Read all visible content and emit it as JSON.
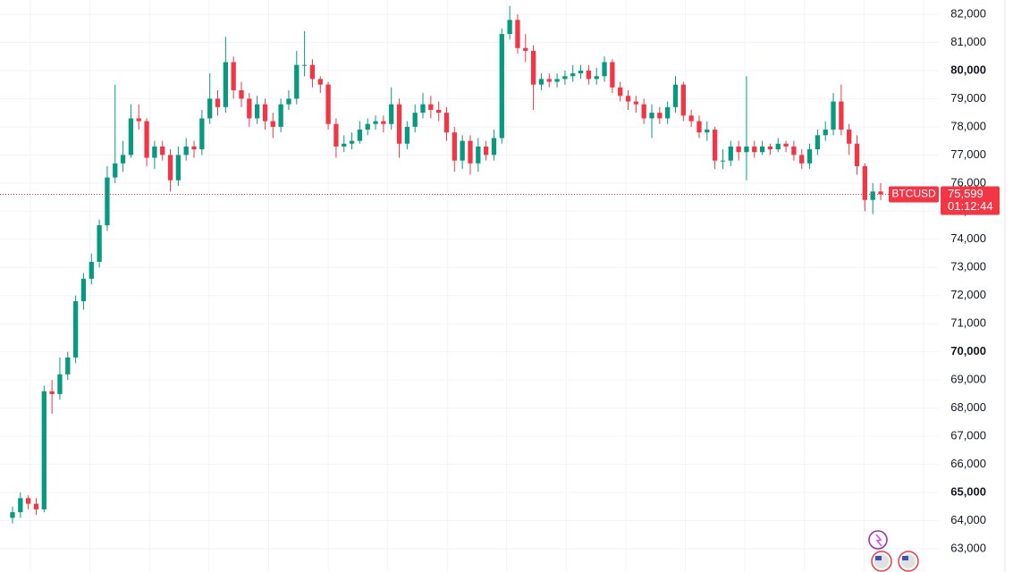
{
  "chart_data": {
    "type": "candlestick",
    "symbol": "BTCUSD",
    "up_color": "#089981",
    "down_color": "#f23645",
    "grid": true,
    "ylim": [
      62174,
      82508
    ],
    "yticks": [
      {
        "value": 63000,
        "label": "63,000"
      },
      {
        "value": 64000,
        "label": "64,000"
      },
      {
        "value": 65000,
        "label": "65,000"
      },
      {
        "value": 66000,
        "label": "66,000"
      },
      {
        "value": 67000,
        "label": "67,000"
      },
      {
        "value": 68000,
        "label": "68,000"
      },
      {
        "value": 69000,
        "label": "69,000"
      },
      {
        "value": 70000,
        "label": "70,000"
      },
      {
        "value": 71000,
        "label": "71,000"
      },
      {
        "value": 72000,
        "label": "72,000"
      },
      {
        "value": 73000,
        "label": "73,000"
      },
      {
        "value": 74000,
        "label": "74,000"
      },
      {
        "value": 75000,
        "label": "75,000"
      },
      {
        "value": 76000,
        "label": "76,000"
      },
      {
        "value": 77000,
        "label": "77,000"
      },
      {
        "value": 78000,
        "label": "78,000"
      },
      {
        "value": 79000,
        "label": "79,000"
      },
      {
        "value": 80000,
        "label": "80,000"
      },
      {
        "value": 81000,
        "label": "81,000"
      },
      {
        "value": 82000,
        "label": "82,000"
      }
    ],
    "current_price": {
      "value": 75599,
      "label": "75,599"
    },
    "countdown": "01:12:44",
    "open": [
      64100,
      64300,
      64800,
      64600,
      64400,
      68600,
      68500,
      69200,
      69800,
      71800,
      72600,
      73200,
      74500,
      76200,
      76700,
      77000,
      78300,
      78200,
      76900,
      77300,
      77000,
      76100,
      77000,
      77300,
      77200,
      78300,
      79000,
      78700,
      80300,
      79300,
      79000,
      78300,
      78800,
      78200,
      78000,
      78800,
      79000,
      80200,
      80200,
      79700,
      79500,
      78100,
      77300,
      77400,
      77500,
      77900,
      78100,
      78200,
      78100,
      78800,
      77400,
      78000,
      78500,
      78800,
      78600,
      78500,
      77800,
      76800,
      77500,
      76700,
      77300,
      77000,
      77600,
      81300,
      81800,
      80800,
      80700,
      79500,
      79700,
      79600,
      79700,
      79800,
      79900,
      80000,
      79700,
      79800,
      80300,
      79400,
      79100,
      78900,
      78800,
      78300,
      78500,
      78300,
      78700,
      79500,
      78400,
      78200,
      77800,
      77900,
      76800,
      76800,
      77300,
      77100,
      77300,
      77100,
      77300,
      77200,
      77400,
      77300,
      77000,
      76700,
      77200,
      77700,
      77900,
      78900,
      77900,
      77400,
      76600,
      75400,
      75700
    ],
    "high": [
      64500,
      65000,
      64900,
      64800,
      68800,
      69000,
      69800,
      70000,
      72000,
      72800,
      73500,
      74700,
      76600,
      79500,
      77500,
      78800,
      78800,
      78300,
      77500,
      77500,
      77200,
      77300,
      77600,
      77500,
      78600,
      79900,
      79300,
      81200,
      80500,
      79600,
      79200,
      79100,
      79000,
      78500,
      79000,
      79300,
      80700,
      81400,
      80400,
      79800,
      79600,
      78300,
      77700,
      77800,
      78200,
      78300,
      78400,
      78400,
      79400,
      79000,
      78200,
      78800,
      79200,
      79100,
      78900,
      78700,
      78000,
      77700,
      77700,
      77600,
      77500,
      77900,
      81500,
      82300,
      82000,
      81300,
      80900,
      79900,
      79900,
      79900,
      80000,
      80200,
      80200,
      80200,
      80100,
      80500,
      80400,
      79600,
      79300,
      79100,
      79000,
      78800,
      78700,
      78900,
      79800,
      79600,
      78600,
      78400,
      78200,
      78000,
      77200,
      77500,
      77500,
      79800,
      77500,
      77500,
      77400,
      77600,
      77500,
      77500,
      77200,
      77400,
      77900,
      78200,
      79200,
      79500,
      78100,
      77700,
      76700,
      76000,
      76000
    ],
    "low": [
      63900,
      64100,
      64400,
      64200,
      64300,
      67800,
      68300,
      69000,
      69600,
      71500,
      72400,
      73000,
      74300,
      76000,
      76400,
      76900,
      77900,
      76600,
      76500,
      76800,
      75700,
      75900,
      76800,
      76900,
      77000,
      78100,
      78400,
      78500,
      79000,
      78700,
      78000,
      78100,
      77900,
      77600,
      77800,
      78600,
      78800,
      79800,
      79400,
      79200,
      77900,
      76900,
      77100,
      77200,
      77400,
      77700,
      77900,
      77800,
      77900,
      76900,
      77200,
      77800,
      78300,
      78300,
      78200,
      77500,
      76400,
      76500,
      76300,
      76400,
      76800,
      76800,
      77400,
      81100,
      80600,
      80300,
      78600,
      79300,
      79400,
      79400,
      79500,
      79600,
      79700,
      79500,
      79500,
      79600,
      79200,
      78900,
      78600,
      78500,
      78100,
      77600,
      78100,
      78100,
      78500,
      78200,
      78000,
      77600,
      77500,
      76500,
      76500,
      76600,
      76800,
      76100,
      76900,
      77000,
      77000,
      77100,
      77100,
      76800,
      76500,
      76500,
      77000,
      77500,
      77700,
      77700,
      77000,
      76300,
      75000,
      74900,
      75400
    ],
    "close": [
      64300,
      64800,
      64600,
      64400,
      68600,
      68500,
      69200,
      69800,
      71800,
      72600,
      73200,
      74500,
      76200,
      76700,
      77000,
      78300,
      78200,
      76900,
      77300,
      77000,
      76100,
      77000,
      77300,
      77200,
      78300,
      79000,
      78700,
      80300,
      79300,
      79000,
      78300,
      78800,
      78200,
      78000,
      78800,
      79000,
      80200,
      80200,
      79700,
      79500,
      78100,
      77300,
      77400,
      77500,
      77900,
      78100,
      78200,
      78100,
      78800,
      77400,
      78000,
      78500,
      78800,
      78600,
      78500,
      77800,
      76800,
      77500,
      76700,
      77300,
      77000,
      77600,
      81300,
      81800,
      80800,
      80700,
      79500,
      79700,
      79600,
      79700,
      79800,
      79900,
      80000,
      79700,
      79800,
      80300,
      79400,
      79100,
      78900,
      78800,
      78300,
      78500,
      78300,
      78700,
      79500,
      78400,
      78200,
      77800,
      77900,
      76800,
      76800,
      77300,
      77100,
      77300,
      77100,
      77300,
      77200,
      77400,
      77300,
      77000,
      76700,
      77200,
      77700,
      77900,
      78900,
      77900,
      77400,
      76600,
      75400,
      75700,
      75599
    ]
  }
}
